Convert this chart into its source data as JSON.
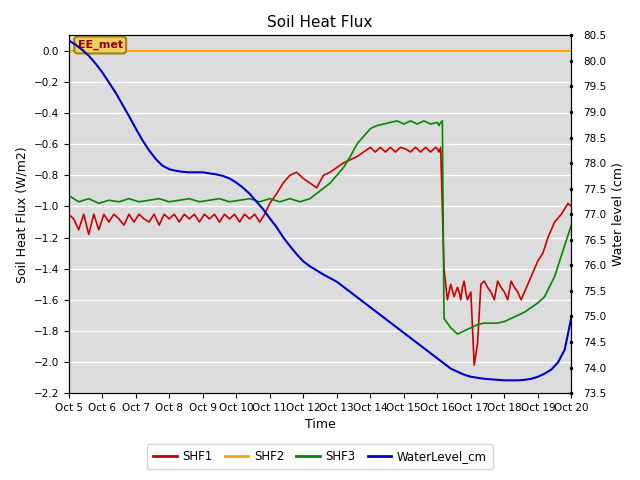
{
  "title": "Soil Heat Flux",
  "xlabel": "Time",
  "ylabel_left": "Soil Heat Flux (W/m2)",
  "ylabel_right": "Water level (cm)",
  "ylim_left": [
    -2.2,
    0.1
  ],
  "ylim_right": [
    73.5,
    80.5
  ],
  "background_color": "#ffffff",
  "plot_bg_color": "#dcdcdc",
  "x_labels": [
    "Oct 5",
    "Oct 6",
    "Oct 7",
    "Oct 8",
    "Oct 9",
    "Oct 10",
    "Oct 11",
    "Oct 12",
    "Oct 13",
    "Oct 14",
    "Oct 15",
    "Oct 16",
    "Oct 17",
    "Oct 18",
    "Oct 19",
    "Oct 20"
  ],
  "shf2_value": 0.0,
  "shf2_color": "#FFA500",
  "shf1_color": "#CC0000",
  "shf3_color": "#008800",
  "wl_color": "#0000CC",
  "ee_met_text": "EE_met",
  "shf1_x": [
    0.0,
    0.15,
    0.3,
    0.45,
    0.6,
    0.75,
    0.9,
    1.05,
    1.2,
    1.35,
    1.5,
    1.65,
    1.8,
    1.95,
    2.1,
    2.25,
    2.4,
    2.55,
    2.7,
    2.85,
    3.0,
    3.15,
    3.3,
    3.45,
    3.6,
    3.75,
    3.9,
    4.05,
    4.2,
    4.35,
    4.5,
    4.65,
    4.8,
    4.95,
    5.1,
    5.25,
    5.4,
    5.55,
    5.7,
    5.85,
    6.0,
    6.2,
    6.4,
    6.6,
    6.8,
    7.0,
    7.2,
    7.4,
    7.6,
    7.8,
    8.0,
    8.2,
    8.4,
    8.6,
    8.8,
    9.0,
    9.15,
    9.3,
    9.45,
    9.6,
    9.75,
    9.9,
    10.05,
    10.2,
    10.35,
    10.5,
    10.65,
    10.8,
    10.95,
    11.0,
    11.05,
    11.1,
    11.2,
    11.3,
    11.4,
    11.5,
    11.6,
    11.65,
    11.7,
    11.75,
    11.8,
    11.85,
    11.9,
    12.0,
    12.1,
    12.15,
    12.2,
    12.3,
    12.4,
    12.5,
    12.6,
    12.7,
    12.8,
    12.9,
    13.0,
    13.1,
    13.2,
    13.3,
    13.4,
    13.5,
    13.6,
    13.7,
    13.8,
    13.9,
    14.0,
    14.15,
    14.3,
    14.5,
    14.7,
    14.9,
    15.0
  ],
  "shf1_y": [
    -1.05,
    -1.08,
    -1.15,
    -1.05,
    -1.18,
    -1.05,
    -1.15,
    -1.05,
    -1.1,
    -1.05,
    -1.08,
    -1.12,
    -1.05,
    -1.1,
    -1.05,
    -1.08,
    -1.1,
    -1.05,
    -1.12,
    -1.05,
    -1.08,
    -1.05,
    -1.1,
    -1.05,
    -1.08,
    -1.05,
    -1.1,
    -1.05,
    -1.08,
    -1.05,
    -1.1,
    -1.05,
    -1.08,
    -1.05,
    -1.1,
    -1.05,
    -1.08,
    -1.05,
    -1.1,
    -1.05,
    -0.98,
    -0.92,
    -0.85,
    -0.8,
    -0.78,
    -0.82,
    -0.85,
    -0.88,
    -0.8,
    -0.78,
    -0.75,
    -0.72,
    -0.7,
    -0.68,
    -0.65,
    -0.62,
    -0.65,
    -0.62,
    -0.65,
    -0.62,
    -0.65,
    -0.62,
    -0.63,
    -0.65,
    -0.62,
    -0.65,
    -0.62,
    -0.65,
    -0.62,
    -0.63,
    -0.65,
    -0.62,
    -1.4,
    -1.6,
    -1.5,
    -1.58,
    -1.52,
    -1.55,
    -1.6,
    -1.52,
    -1.48,
    -1.55,
    -1.6,
    -1.55,
    -2.02,
    -1.95,
    -1.88,
    -1.5,
    -1.48,
    -1.52,
    -1.55,
    -1.6,
    -1.48,
    -1.52,
    -1.55,
    -1.6,
    -1.48,
    -1.52,
    -1.55,
    -1.6,
    -1.55,
    -1.5,
    -1.45,
    -1.4,
    -1.35,
    -1.3,
    -1.2,
    -1.1,
    -1.05,
    -0.98,
    -1.0
  ],
  "shf3_x": [
    0.0,
    0.3,
    0.6,
    0.9,
    1.2,
    1.5,
    1.8,
    2.1,
    2.4,
    2.7,
    3.0,
    3.3,
    3.6,
    3.9,
    4.2,
    4.5,
    4.8,
    5.1,
    5.4,
    5.7,
    6.0,
    6.3,
    6.6,
    6.9,
    7.2,
    7.5,
    7.8,
    8.0,
    8.2,
    8.4,
    8.6,
    8.8,
    9.0,
    9.2,
    9.4,
    9.6,
    9.8,
    10.0,
    10.2,
    10.4,
    10.6,
    10.8,
    11.0,
    11.05,
    11.1,
    11.15,
    11.2,
    11.4,
    11.6,
    11.8,
    12.0,
    12.2,
    12.4,
    12.6,
    12.8,
    13.0,
    13.2,
    13.4,
    13.6,
    13.8,
    14.0,
    14.2,
    14.5,
    14.8,
    15.0
  ],
  "shf3_y": [
    -0.93,
    -0.97,
    -0.95,
    -0.98,
    -0.96,
    -0.97,
    -0.95,
    -0.97,
    -0.96,
    -0.95,
    -0.97,
    -0.96,
    -0.95,
    -0.97,
    -0.96,
    -0.95,
    -0.97,
    -0.96,
    -0.95,
    -0.97,
    -0.95,
    -0.97,
    -0.95,
    -0.97,
    -0.95,
    -0.9,
    -0.85,
    -0.8,
    -0.75,
    -0.68,
    -0.6,
    -0.55,
    -0.5,
    -0.48,
    -0.47,
    -0.46,
    -0.45,
    -0.47,
    -0.45,
    -0.47,
    -0.45,
    -0.47,
    -0.46,
    -0.48,
    -0.46,
    -0.45,
    -1.72,
    -1.78,
    -1.82,
    -1.8,
    -1.78,
    -1.76,
    -1.75,
    -1.75,
    -1.75,
    -1.74,
    -1.72,
    -1.7,
    -1.68,
    -1.65,
    -1.62,
    -1.58,
    -1.45,
    -1.25,
    -1.12
  ],
  "wl_x": [
    0.0,
    0.2,
    0.4,
    0.6,
    0.8,
    1.0,
    1.2,
    1.4,
    1.6,
    1.8,
    2.0,
    2.2,
    2.4,
    2.6,
    2.8,
    3.0,
    3.2,
    3.4,
    3.6,
    3.8,
    4.0,
    4.2,
    4.4,
    4.6,
    4.8,
    5.0,
    5.2,
    5.4,
    5.6,
    5.8,
    6.0,
    6.2,
    6.4,
    6.6,
    6.8,
    7.0,
    7.2,
    7.4,
    7.6,
    7.8,
    8.0,
    8.2,
    8.4,
    8.6,
    8.8,
    9.0,
    9.2,
    9.4,
    9.6,
    9.8,
    10.0,
    10.2,
    10.4,
    10.6,
    10.8,
    11.0,
    11.2,
    11.4,
    11.6,
    11.8,
    12.0,
    12.2,
    12.4,
    12.6,
    12.8,
    13.0,
    13.2,
    13.4,
    13.6,
    13.8,
    14.0,
    14.2,
    14.4,
    14.6,
    14.8,
    15.0
  ],
  "wl_y": [
    80.4,
    80.32,
    80.22,
    80.1,
    79.95,
    79.78,
    79.58,
    79.38,
    79.15,
    78.92,
    78.68,
    78.45,
    78.25,
    78.08,
    77.95,
    77.88,
    77.85,
    77.83,
    77.82,
    77.82,
    77.82,
    77.8,
    77.78,
    77.75,
    77.7,
    77.62,
    77.52,
    77.4,
    77.25,
    77.1,
    76.92,
    76.75,
    76.55,
    76.38,
    76.22,
    76.08,
    75.98,
    75.9,
    75.82,
    75.75,
    75.68,
    75.58,
    75.48,
    75.38,
    75.28,
    75.18,
    75.08,
    74.98,
    74.88,
    74.78,
    74.68,
    74.58,
    74.48,
    74.38,
    74.28,
    74.18,
    74.08,
    73.98,
    73.92,
    73.86,
    73.82,
    73.8,
    73.78,
    73.77,
    73.76,
    73.75,
    73.75,
    73.75,
    73.76,
    73.78,
    73.82,
    73.88,
    73.96,
    74.1,
    74.35,
    74.98
  ]
}
